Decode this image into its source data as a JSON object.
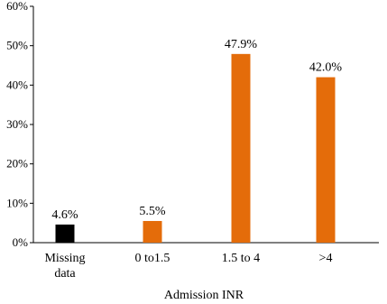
{
  "chart_data": {
    "type": "bar",
    "categories": [
      "Missing data",
      "0 to1.5",
      "1.5 to 4",
      ">4"
    ],
    "values": [
      4.6,
      5.5,
      47.9,
      42.0
    ],
    "data_labels": [
      "4.6%",
      "5.5%",
      "47.9%",
      "42.0%"
    ],
    "bar_colors": [
      "#000000",
      "#e46c0a",
      "#e46c0a",
      "#e46c0a"
    ],
    "title": "",
    "xlabel": "Admission INR",
    "ylabel": "",
    "ylim": [
      0,
      60
    ],
    "y_ticks": [
      0,
      10,
      20,
      30,
      40,
      50,
      60
    ],
    "y_tick_labels": [
      "0%",
      "10%",
      "20%",
      "30%",
      "40%",
      "50%",
      "60%"
    ],
    "grid": false,
    "legend": "none"
  }
}
